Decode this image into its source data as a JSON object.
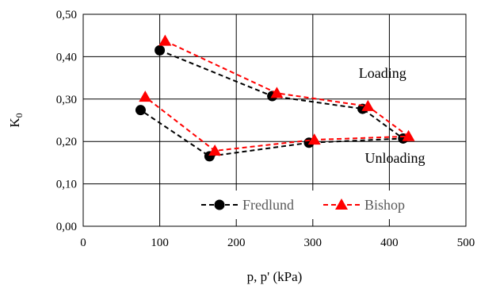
{
  "chart_data": {
    "type": "line",
    "xlabel": "p, p' (kPa)",
    "ylabel": "K",
    "ylabel_subscript": "0",
    "xlim": [
      0,
      500
    ],
    "ylim": [
      0,
      0.5
    ],
    "x_ticks": [
      {
        "value": 0,
        "label": "0"
      },
      {
        "value": 100,
        "label": "100"
      },
      {
        "value": 200,
        "label": "200"
      },
      {
        "value": 300,
        "label": "300"
      },
      {
        "value": 400,
        "label": "400"
      },
      {
        "value": 500,
        "label": "500"
      }
    ],
    "y_ticks": [
      {
        "value": 0,
        "label": "0,00"
      },
      {
        "value": 0.1,
        "label": "0,10"
      },
      {
        "value": 0.2,
        "label": "0,20"
      },
      {
        "value": 0.3,
        "label": "0,30"
      },
      {
        "value": 0.4,
        "label": "0,40"
      },
      {
        "value": 0.5,
        "label": "0,50"
      }
    ],
    "grid": true,
    "legend_position": "bottom-right",
    "series": [
      {
        "name": "Fredlund",
        "color": "#000000",
        "marker": "circle",
        "x": [
          100,
          247,
          365,
          418,
          295,
          165,
          75
        ],
        "y": [
          0.415,
          0.307,
          0.277,
          0.207,
          0.197,
          0.165,
          0.274
        ]
      },
      {
        "name": "Bishop",
        "color": "#ff0000",
        "marker": "triangle",
        "x": [
          107,
          253,
          372,
          425,
          302,
          172,
          81
        ],
        "y": [
          0.437,
          0.314,
          0.283,
          0.212,
          0.204,
          0.178,
          0.305
        ]
      }
    ],
    "annotations": [
      {
        "text": "Loading",
        "x": 360,
        "y": 0.35
      },
      {
        "text": "Unloading",
        "x": 368,
        "y": 0.15
      }
    ]
  }
}
